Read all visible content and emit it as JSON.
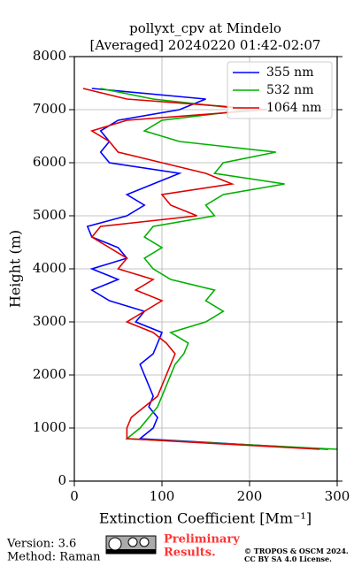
{
  "chart_data": {
    "type": "line",
    "title": [
      "pollyxt_cpv at Mindelo",
      "[Averaged] 20240220 01:42-02:07"
    ],
    "x_label": "Extinction Coefficient [Mm⁻¹]",
    "y_label": "Height (m)",
    "y": [
      600,
      800,
      1000,
      1200,
      1400,
      1600,
      1800,
      2000,
      2200,
      2400,
      2600,
      2800,
      3000,
      3200,
      3400,
      3600,
      3800,
      4000,
      4200,
      4400,
      4600,
      4800,
      5000,
      5200,
      5400,
      5600,
      5800,
      6000,
      6200,
      6400,
      6600,
      6800,
      7000,
      7200,
      7400
    ],
    "series": [
      {
        "name": "355 nm",
        "color": "#0000ff",
        "values": [
          290,
          75,
          90,
          95,
          85,
          90,
          85,
          80,
          75,
          90,
          95,
          100,
          70,
          80,
          40,
          20,
          50,
          20,
          60,
          50,
          20,
          15,
          60,
          80,
          60,
          90,
          120,
          40,
          30,
          40,
          30,
          50,
          120,
          150,
          20
        ]
      },
      {
        "name": "532 nm",
        "color": "#00b000",
        "values": [
          300,
          60,
          75,
          85,
          95,
          100,
          105,
          110,
          115,
          125,
          130,
          110,
          150,
          170,
          150,
          160,
          110,
          90,
          80,
          100,
          80,
          90,
          160,
          150,
          170,
          240,
          160,
          170,
          230,
          120,
          80,
          100,
          200,
          90,
          30
        ]
      },
      {
        "name": "1064 nm",
        "color": "#e00000",
        "values": [
          280,
          60,
          60,
          65,
          80,
          95,
          100,
          105,
          110,
          115,
          105,
          90,
          60,
          80,
          100,
          70,
          90,
          50,
          60,
          40,
          20,
          30,
          140,
          110,
          100,
          180,
          150,
          100,
          50,
          40,
          20,
          60,
          220,
          60,
          10
        ]
      }
    ],
    "xlim": [
      0,
      300
    ],
    "xticks": [
      0,
      100,
      200,
      300
    ],
    "ylim": [
      0,
      8000
    ],
    "yticks": [
      0,
      1000,
      2000,
      3000,
      4000,
      5000,
      6000,
      7000,
      8000
    ],
    "grid": true,
    "legend": "upper right"
  },
  "footer": {
    "version": "Version: 3.6",
    "method": "Method: Raman",
    "status": [
      "Preliminary",
      "Results."
    ],
    "copyright": [
      "© TROPOS & OSCM 2024.",
      "CC BY SA 4.0 License."
    ]
  }
}
